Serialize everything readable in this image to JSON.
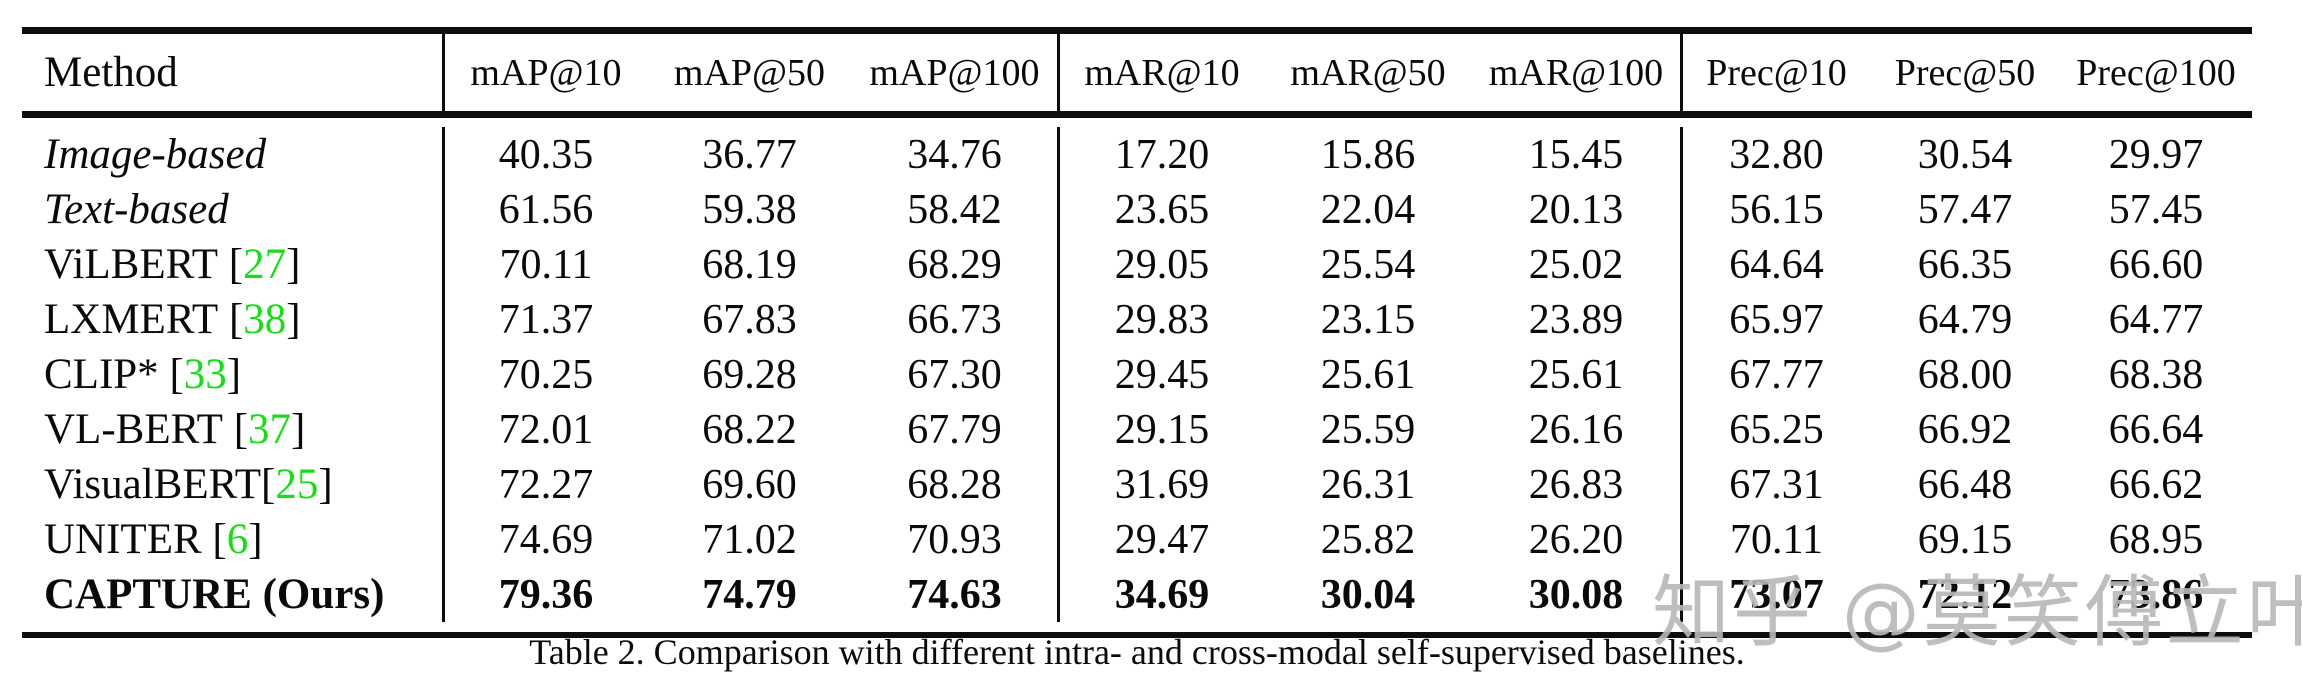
{
  "colors": {
    "citation_green": "#17DD17",
    "rule_black": "#0D0D0D",
    "watermark_gray": "#B8B8B8"
  },
  "header": {
    "columns": [
      "Method",
      "mAP@10",
      "mAP@50",
      "mAP@100",
      "mAR@10",
      "mAR@50",
      "mAR@100",
      "Prec@10",
      "Prec@50",
      "Prec@100"
    ]
  },
  "rows": [
    {
      "method": "Image-based",
      "style": "italic",
      "cite": null,
      "space_before_cite": false,
      "values": [
        "40.35",
        "36.77",
        "34.76",
        "17.20",
        "15.86",
        "15.45",
        "32.80",
        "30.54",
        "29.97"
      ]
    },
    {
      "method": "Text-based",
      "style": "italic",
      "cite": null,
      "space_before_cite": false,
      "values": [
        "61.56",
        "59.38",
        "58.42",
        "23.65",
        "22.04",
        "20.13",
        "56.15",
        "57.47",
        "57.45"
      ]
    },
    {
      "method": "ViLBERT",
      "style": "normal",
      "cite": "27",
      "space_before_cite": true,
      "values": [
        "70.11",
        "68.19",
        "68.29",
        "29.05",
        "25.54",
        "25.02",
        "64.64",
        "66.35",
        "66.60"
      ]
    },
    {
      "method": "LXMERT",
      "style": "normal",
      "cite": "38",
      "space_before_cite": true,
      "values": [
        "71.37",
        "67.83",
        "66.73",
        "29.83",
        "23.15",
        "23.89",
        "65.97",
        "64.79",
        "64.77"
      ]
    },
    {
      "method": "CLIP*",
      "style": "normal",
      "cite": "33",
      "space_before_cite": true,
      "values": [
        "70.25",
        "69.28",
        "67.30",
        "29.45",
        "25.61",
        "25.61",
        "67.77",
        "68.00",
        "68.38"
      ]
    },
    {
      "method": "VL-BERT",
      "style": "normal",
      "cite": "37",
      "space_before_cite": true,
      "values": [
        "72.01",
        "68.22",
        "67.79",
        "29.15",
        "25.59",
        "26.16",
        "65.25",
        "66.92",
        "66.64"
      ]
    },
    {
      "method": "VisualBERT",
      "style": "normal",
      "cite": "25",
      "space_before_cite": false,
      "values": [
        "72.27",
        "69.60",
        "68.28",
        "31.69",
        "26.31",
        "26.83",
        "67.31",
        "66.48",
        "66.62"
      ]
    },
    {
      "method": "UNITER",
      "style": "normal",
      "cite": "6",
      "space_before_cite": true,
      "values": [
        "74.69",
        "71.02",
        "70.93",
        "29.47",
        "25.82",
        "26.20",
        "70.11",
        "69.15",
        "68.95"
      ]
    },
    {
      "method": "CAPTURE (Ours)",
      "style": "bold",
      "cite": null,
      "space_before_cite": false,
      "values": [
        "79.36",
        "74.79",
        "74.63",
        "34.69",
        "30.04",
        "30.08",
        "73.07",
        "72.12",
        "73.86"
      ]
    }
  ],
  "caption": "Table 2. Comparison with different intra- and cross-modal self-supervised baselines.",
  "watermark": "知乎 @莫笑傅立叶"
}
